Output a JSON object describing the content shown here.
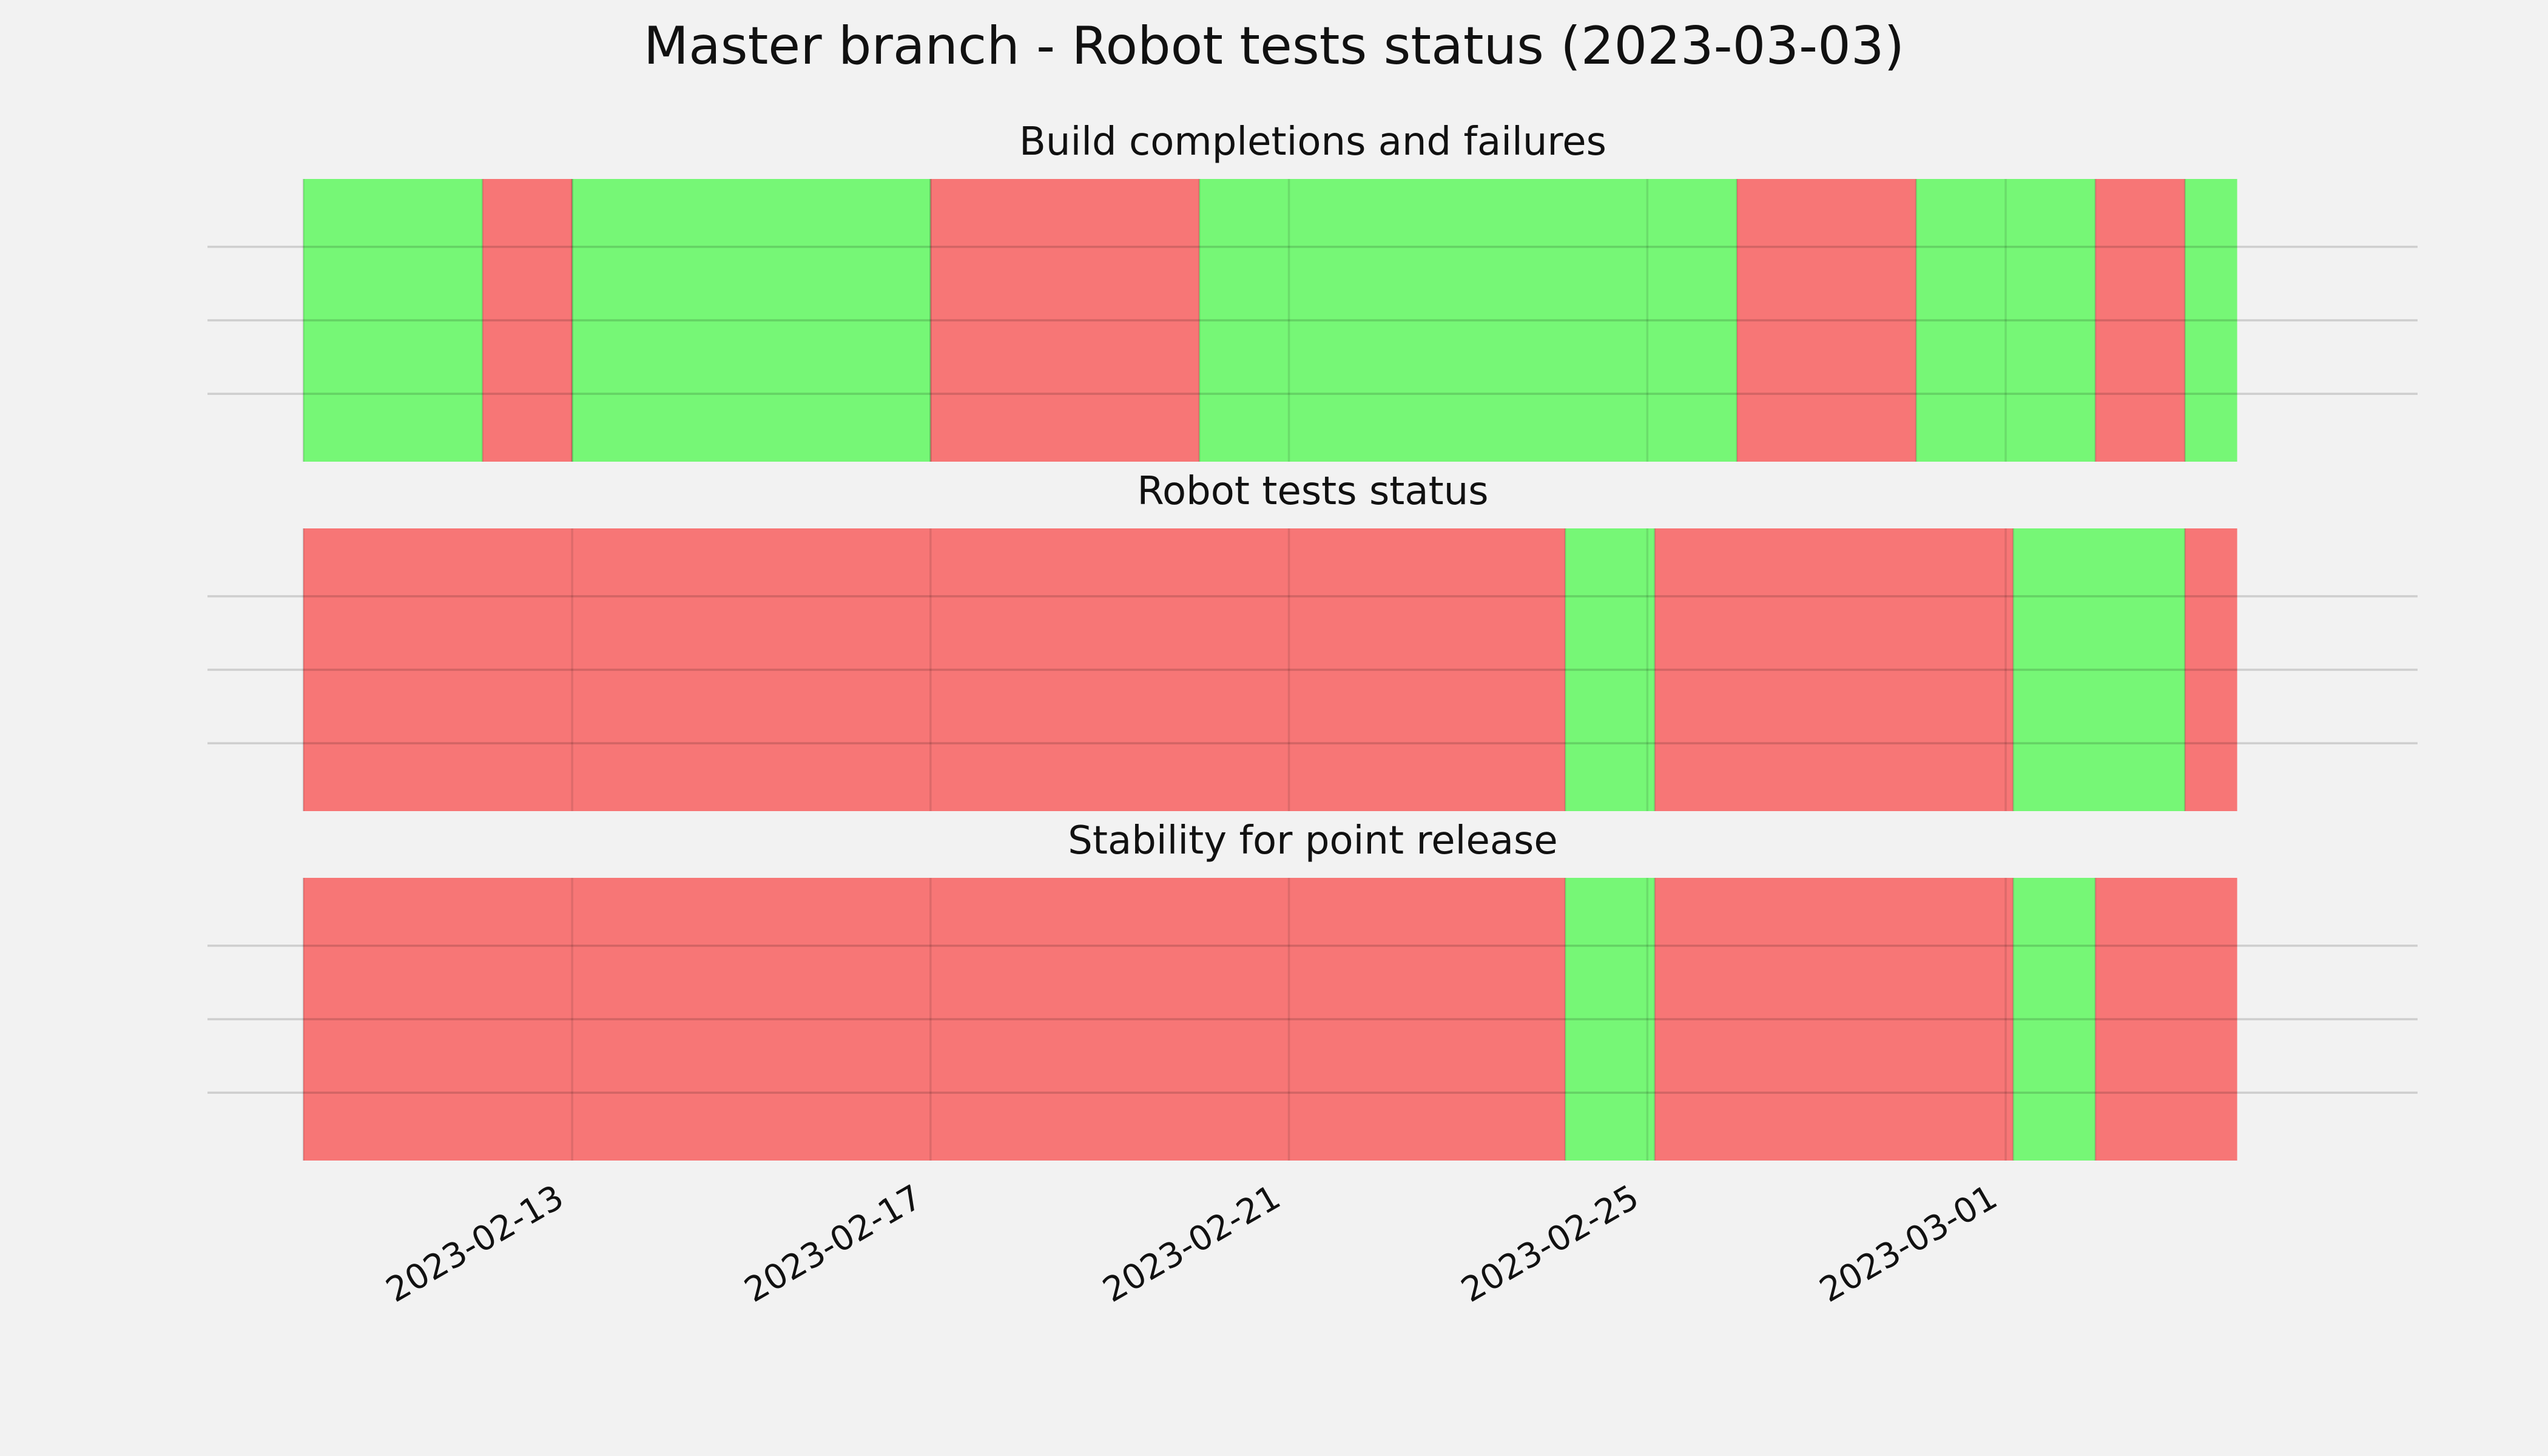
{
  "chart_data": {
    "type": "timeline",
    "title": "Master branch - Robot tests status (2023-03-03)",
    "colors": {
      "pass": "#76f776",
      "fail": "#f77676"
    },
    "x_domain": [
      "2023-02-10",
      "2023-03-04 12:00"
    ],
    "x_ticks": [
      "2023-02-13",
      "2023-02-17",
      "2023-02-21",
      "2023-02-25",
      "2023-03-01"
    ],
    "grid": true,
    "panels": [
      {
        "title": "Build completions and failures",
        "segments": [
          {
            "start": "2023-02-10 00:00",
            "end": "2023-02-12 00:00",
            "status": "pass"
          },
          {
            "start": "2023-02-12 00:00",
            "end": "2023-02-13 00:00",
            "status": "fail"
          },
          {
            "start": "2023-02-13 00:00",
            "end": "2023-02-17 00:00",
            "status": "pass"
          },
          {
            "start": "2023-02-17 00:00",
            "end": "2023-02-20 00:00",
            "status": "fail"
          },
          {
            "start": "2023-02-20 00:00",
            "end": "2023-02-26 00:00",
            "status": "pass"
          },
          {
            "start": "2023-02-26 00:00",
            "end": "2023-02-28 00:00",
            "status": "fail"
          },
          {
            "start": "2023-02-28 00:00",
            "end": "2023-03-02 00:00",
            "status": "pass"
          },
          {
            "start": "2023-03-02 00:00",
            "end": "2023-03-03 00:00",
            "status": "fail"
          },
          {
            "start": "2023-03-03 00:00",
            "end": "2023-03-03 14:00",
            "status": "pass"
          }
        ]
      },
      {
        "title": "Robot tests status",
        "segments": [
          {
            "start": "2023-02-10 00:00",
            "end": "2023-02-24 02:00",
            "status": "fail"
          },
          {
            "start": "2023-02-24 02:00",
            "end": "2023-02-25 02:00",
            "status": "pass"
          },
          {
            "start": "2023-02-25 02:00",
            "end": "2023-03-01 02:00",
            "status": "fail"
          },
          {
            "start": "2023-03-01 02:00",
            "end": "2023-03-03 00:00",
            "status": "pass"
          },
          {
            "start": "2023-03-03 00:00",
            "end": "2023-03-03 14:00",
            "status": "fail"
          }
        ]
      },
      {
        "title": "Stability for point release",
        "segments": [
          {
            "start": "2023-02-10 00:00",
            "end": "2023-02-24 02:00",
            "status": "fail"
          },
          {
            "start": "2023-02-24 02:00",
            "end": "2023-02-25 02:00",
            "status": "pass"
          },
          {
            "start": "2023-02-25 02:00",
            "end": "2023-03-01 02:00",
            "status": "fail"
          },
          {
            "start": "2023-03-01 02:00",
            "end": "2023-03-02 00:00",
            "status": "pass"
          },
          {
            "start": "2023-03-02 00:00",
            "end": "2023-03-03 14:00",
            "status": "fail"
          }
        ]
      }
    ]
  }
}
